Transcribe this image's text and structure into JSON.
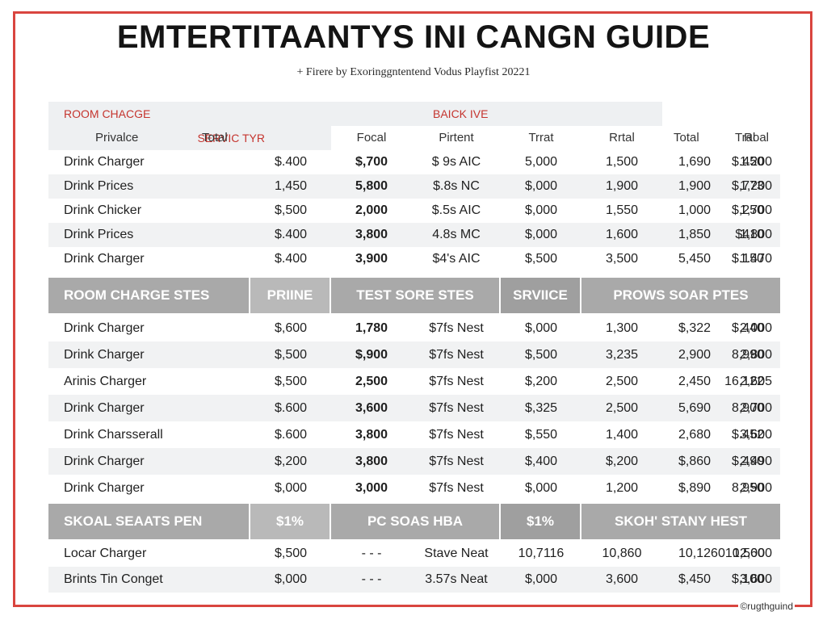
{
  "title": "EMTERTITAANTYS INI CANGN GUIDE",
  "subtitle": "+ Firere by Exoringgntentend Vodus Playfist 20221",
  "header_top": [
    "ROOM CHACGE",
    "",
    "",
    "BAICK IVE",
    "",
    "",
    "SERVIC TYR"
  ],
  "header_sub": [
    "Privalce",
    "Total",
    "Focal",
    "Pirtent",
    "Trrat",
    "Rrtal",
    "Total",
    "Roal",
    "Tral"
  ],
  "section1_rows": [
    [
      "Drink Charger",
      "$.400",
      "$,700",
      "$ 9s AIC",
      "5,000",
      "1,500",
      "1,690",
      "$.450",
      "1.200"
    ],
    [
      "Drink Prices",
      "1,450",
      "5,800",
      "$.8s NC",
      "$,000",
      "1,900",
      "1,900",
      "$,773",
      "1,200"
    ],
    [
      "Drink Chicker",
      "$,500",
      "2,000",
      "$.5s AIC",
      "$,000",
      "1,550",
      "1,000",
      "$,250",
      "1,700"
    ],
    [
      "Drink Prices",
      "$.400",
      "3,800",
      "4.8s MC",
      "$,000",
      "1,600",
      "1,850",
      "$410",
      "1,800"
    ],
    [
      "Drink Charger",
      "$.400",
      "3,900",
      "$4's AIC",
      "$,500",
      "3,500",
      "5,450",
      "$.150",
      "1.470"
    ]
  ],
  "section2_header": [
    "ROOM CHARGE STES",
    "PRIINE",
    "TEST SORE STES",
    "SRVIICE",
    "PROWS SOAR PTES"
  ],
  "section2_rows": [
    [
      "Drink Charger",
      "$,600",
      "1,780",
      "$7fs Nest",
      "$,000",
      "1,300",
      "$,322",
      "$,440",
      "2,000"
    ],
    [
      "Drink Charger",
      "$,500",
      "$,900",
      "$7fs Nest",
      "$,500",
      "3,235",
      "2,900",
      "8,990",
      "2,800"
    ],
    [
      "Arinis Charger",
      "$,500",
      "2,500",
      "$7fs Nest",
      "$,200",
      "2,500",
      "2,450",
      "16,122",
      "2,605"
    ],
    [
      "Drink Charger",
      "$.600",
      "3,600",
      "$7fs Nest",
      "$,325",
      "2,500",
      "5,690",
      "8,900",
      "2,700"
    ],
    [
      "Drink Charsserall",
      "$.600",
      "3,800",
      "$7fs Nest",
      "$,550",
      "1,400",
      "2,680",
      "$.452",
      "3,600"
    ],
    [
      "Drink Charger",
      "$,200",
      "3,800",
      "$7fs Nest",
      "$,400",
      "$,200",
      "$,860",
      "$,490",
      "2,490"
    ],
    [
      "Drink Charger",
      "$,000",
      "3,000",
      "$7fs Nest",
      "$,000",
      "1,200",
      "$,890",
      "8,950",
      "2,900"
    ]
  ],
  "section3_header": [
    "SKOAL SEAATS PEN",
    "$1%",
    "PC SOAS HBA",
    "$1%",
    "SKOH' STANY HEST"
  ],
  "section3_rows": [
    [
      "Locar Charger",
      "$,500",
      "- - -",
      "Stave Neat",
      "10,7116",
      "10,860",
      "10,1260",
      "10,560",
      "12,000"
    ],
    [
      "Brints Tin Conget",
      "$,000",
      "- - -",
      "3.57s Neat",
      "$,000",
      "3,600",
      "$,450",
      "$,100",
      "3,600"
    ]
  ],
  "footer_mark": "©rugthguind"
}
